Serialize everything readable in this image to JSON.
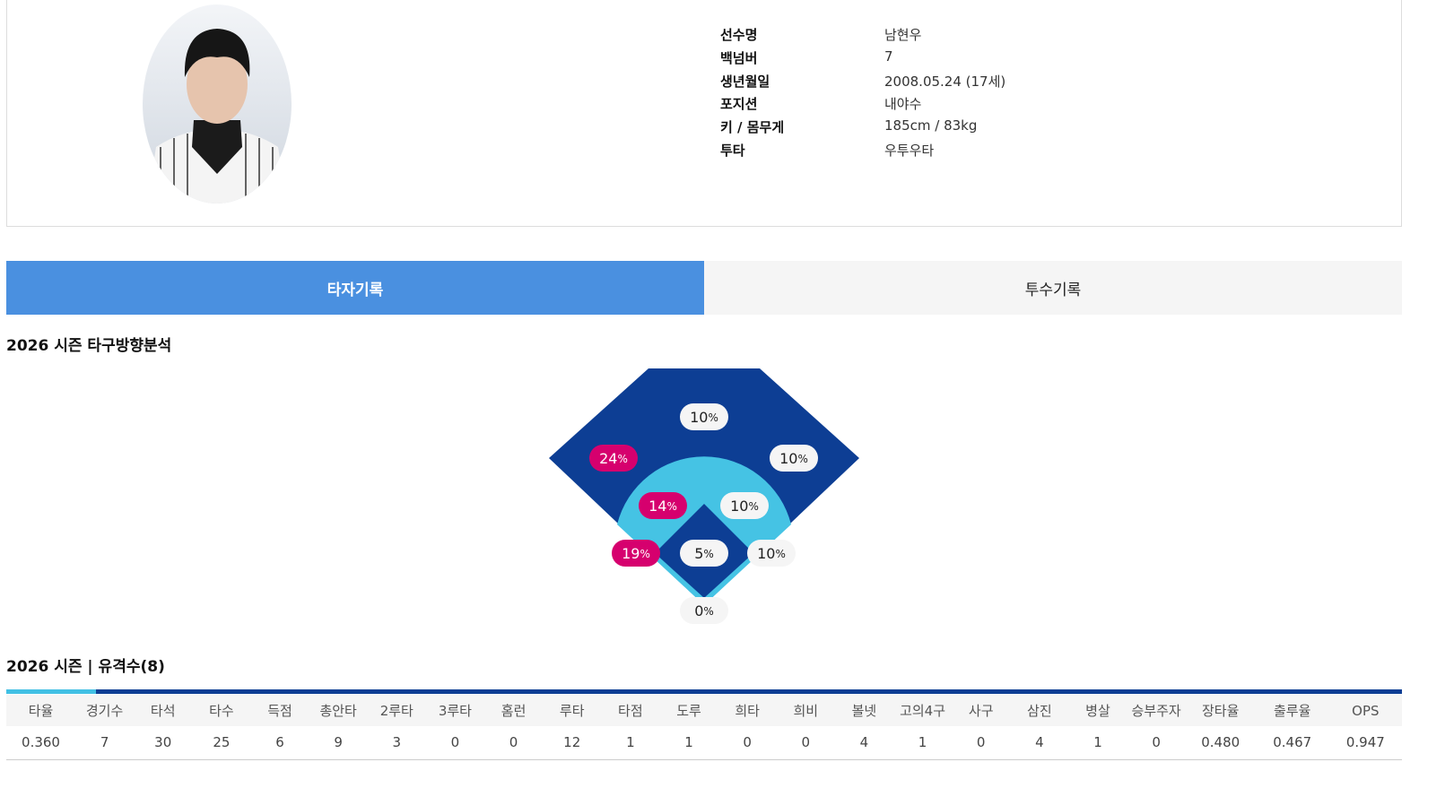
{
  "profile": {
    "fields": [
      {
        "label": "선수명",
        "value": "남현우"
      },
      {
        "label": "백넘버",
        "value": "7"
      },
      {
        "label": "생년월일",
        "value": "2008.05.24 (17세)"
      },
      {
        "label": "포지션",
        "value": "내야수"
      },
      {
        "label": "키 / 몸무게",
        "value": "185cm / 83kg"
      },
      {
        "label": "투타",
        "value": "우투우타"
      }
    ]
  },
  "tabs": [
    {
      "label": "타자기록",
      "active": true
    },
    {
      "label": "투수기록",
      "active": false
    }
  ],
  "direction": {
    "title": "2026 시즌 타구방향분석",
    "zones": [
      {
        "pct": "10",
        "unit": "%",
        "highlight": false
      },
      {
        "pct": "24",
        "unit": "%",
        "highlight": true
      },
      {
        "pct": "10",
        "unit": "%",
        "highlight": false
      },
      {
        "pct": "14",
        "unit": "%",
        "highlight": true
      },
      {
        "pct": "10",
        "unit": "%",
        "highlight": false
      },
      {
        "pct": "19",
        "unit": "%",
        "highlight": true
      },
      {
        "pct": "5",
        "unit": "%",
        "highlight": false
      },
      {
        "pct": "10",
        "unit": "%",
        "highlight": false
      },
      {
        "pct": "0",
        "unit": "%",
        "highlight": false
      }
    ]
  },
  "stats": {
    "title": "2026 시즌 | 유격수(8)",
    "headers": [
      "타율",
      "경기수",
      "타석",
      "타수",
      "득점",
      "총안타",
      "2루타",
      "3루타",
      "홈런",
      "루타",
      "타점",
      "도루",
      "희타",
      "희비",
      "볼넷",
      "고의4구",
      "사구",
      "삼진",
      "병살",
      "승부주자",
      "장타율",
      "출루율",
      "OPS"
    ],
    "rows": [
      [
        "0.360",
        "7",
        "30",
        "25",
        "6",
        "9",
        "3",
        "0",
        "0",
        "12",
        "1",
        "1",
        "0",
        "0",
        "4",
        "1",
        "0",
        "4",
        "1",
        "0",
        "0.480",
        "0.467",
        "0.947"
      ]
    ]
  }
}
